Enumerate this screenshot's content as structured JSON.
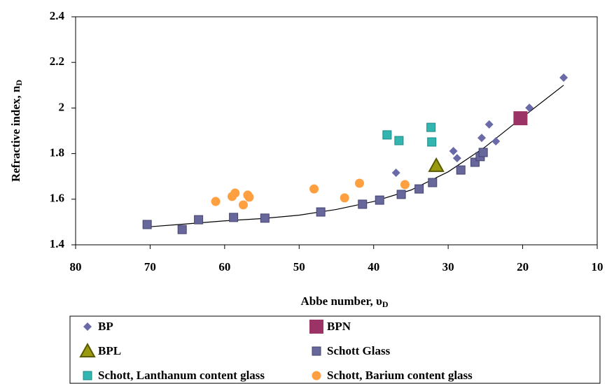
{
  "chart_data": {
    "type": "scatter",
    "ylabel": "Refractive index, n",
    "ylabel_sub": "D",
    "xlabel": "Abbe number, υ",
    "xlabel_sub": "D",
    "xlim": [
      80,
      10
    ],
    "xticks": [
      80,
      70,
      60,
      50,
      40,
      30,
      20,
      10
    ],
    "ylim": [
      1.4,
      2.4
    ],
    "yticks": [
      1.4,
      1.6,
      1.8,
      2,
      2.2,
      2.4
    ],
    "series": [
      {
        "name": "BP",
        "color": "#6a6aa8",
        "marker": "diamond",
        "x": [
          37.0,
          29.3,
          28.8,
          25.5,
          24.5,
          23.6,
          19.1,
          14.5
        ],
        "values": [
          1.716,
          1.811,
          1.78,
          1.869,
          1.928,
          1.854,
          2.001,
          2.133
        ]
      },
      {
        "name": "BPN",
        "color": "#9b3366",
        "marker": "square-big",
        "x": [
          20.3
        ],
        "values": [
          1.955
        ]
      },
      {
        "name": "BPL",
        "color": "#9a9a10",
        "marker": "triangle",
        "x": [
          31.6
        ],
        "values": [
          1.747
        ]
      },
      {
        "name": "Schott Glass",
        "color": "#67679c",
        "marker": "square",
        "x": [
          70.4,
          65.7,
          63.5,
          58.8,
          54.6,
          47.1,
          41.5,
          39.2,
          36.3,
          33.9,
          32.1,
          28.3,
          26.4,
          25.7,
          25.3
        ],
        "values": [
          1.489,
          1.467,
          1.51,
          1.52,
          1.517,
          1.544,
          1.578,
          1.596,
          1.621,
          1.645,
          1.673,
          1.728,
          1.762,
          1.787,
          1.805
        ]
      },
      {
        "name": "Schott, Lanthanum content glass",
        "color": "#33b5b0",
        "marker": "hourglass",
        "x": [
          38.2,
          36.6,
          32.3,
          32.2
        ],
        "values": [
          1.882,
          1.857,
          1.915,
          1.851
        ]
      },
      {
        "name": "Schott, Barium content glass",
        "color": "#ffa040",
        "marker": "circle",
        "x": [
          61.2,
          59.0,
          58.6,
          57.5,
          56.9,
          56.7,
          48.0,
          43.9,
          41.9,
          35.8
        ],
        "values": [
          1.59,
          1.612,
          1.627,
          1.575,
          1.618,
          1.609,
          1.645,
          1.606,
          1.67,
          1.664
        ]
      }
    ],
    "trendline": {
      "color": "#000000",
      "x": [
        70.5,
        65,
        60,
        55,
        50,
        45,
        40,
        35,
        30,
        25,
        20,
        14.5
      ],
      "values": [
        1.478,
        1.492,
        1.505,
        1.515,
        1.53,
        1.555,
        1.59,
        1.64,
        1.72,
        1.83,
        1.96,
        2.1
      ]
    }
  }
}
